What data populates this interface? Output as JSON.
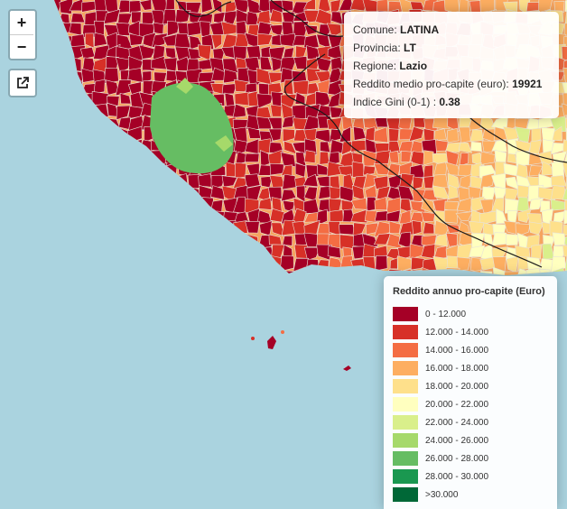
{
  "controls": {
    "zoom_in": "+",
    "zoom_out": "−",
    "fullscreen_icon": "external-link-icon"
  },
  "info": {
    "rows": [
      {
        "label": "Comune: ",
        "value": "LATINA"
      },
      {
        "label": "Provincia: ",
        "value": "LT"
      },
      {
        "label": "Regione: ",
        "value": "Lazio"
      },
      {
        "label": "Reddito medio pro-capite (euro): ",
        "value": "19921"
      },
      {
        "label": "Indice Gini (0-1) : ",
        "value": "0.38"
      }
    ]
  },
  "legend": {
    "title": "Reddito annuo pro-capite (Euro)",
    "items": [
      {
        "label": "0 - 12.000",
        "color": "#a50026"
      },
      {
        "label": "12.000 - 14.000",
        "color": "#d73027"
      },
      {
        "label": "14.000 - 16.000",
        "color": "#f46d43"
      },
      {
        "label": "16.000 - 18.000",
        "color": "#fdae61"
      },
      {
        "label": "18.000 - 20.000",
        "color": "#fee08b"
      },
      {
        "label": "20.000 - 22.000",
        "color": "#ffffbf"
      },
      {
        "label": "22.000 - 24.000",
        "color": "#d9ef8b"
      },
      {
        "label": "24.000 - 26.000",
        "color": "#a6d96a"
      },
      {
        "label": "26.000 - 28.000",
        "color": "#66bd63"
      },
      {
        "label": "28.000 - 30.000",
        "color": "#1a9850"
      },
      {
        "label": ">30.000",
        "color": "#006837"
      }
    ]
  },
  "map": {
    "sea_color": "#aad3df",
    "region_border_color": "#1a1a1a"
  }
}
